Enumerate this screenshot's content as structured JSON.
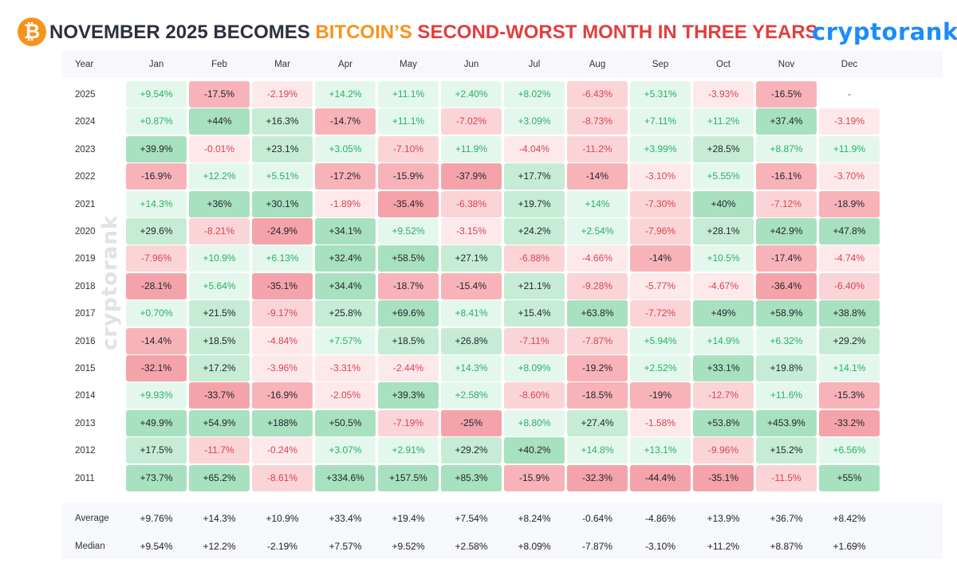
{
  "header": {
    "btc_symbol": "₿",
    "title_part1": "NOVEMBER 2025 BECOMES ",
    "title_part2": "BITCOIN’S",
    "title_part3": " SECOND-WORST MONTH IN THREE YEARS",
    "brand": "cryptorank",
    "colors": {
      "dark": "#2c3140",
      "orange": "#f7931a",
      "red": "#e23e3e",
      "brand_blue": "#1a8cff"
    }
  },
  "watermark": "cryptorank",
  "chart_data": {
    "type": "heatmap",
    "row_header_label": "Year",
    "months": [
      "Jan",
      "Feb",
      "Mar",
      "Apr",
      "May",
      "Jun",
      "Jul",
      "Aug",
      "Sep",
      "Oct",
      "Nov",
      "Dec"
    ],
    "rows": [
      {
        "year": "2025",
        "values": [
          "+9.54%",
          "-17.5%",
          "-2.19%",
          "+14.2%",
          "+11.1%",
          "+2.40%",
          "+8.02%",
          "-6.43%",
          "+5.31%",
          "-3.93%",
          "-16.5%",
          "-"
        ]
      },
      {
        "year": "2024",
        "values": [
          "+0.87%",
          "+44%",
          "+16.3%",
          "-14.7%",
          "+11.1%",
          "-7.02%",
          "+3.09%",
          "-8.73%",
          "+7.11%",
          "+11.2%",
          "+37.4%",
          "-3.19%"
        ]
      },
      {
        "year": "2023",
        "values": [
          "+39.9%",
          "-0.01%",
          "+23.1%",
          "+3.05%",
          "-7.10%",
          "+11.9%",
          "-4.04%",
          "-11.2%",
          "+3.99%",
          "+28.5%",
          "+8.87%",
          "+11.9%"
        ]
      },
      {
        "year": "2022",
        "values": [
          "-16.9%",
          "+12.2%",
          "+5.51%",
          "-17.2%",
          "-15.9%",
          "-37.9%",
          "+17.7%",
          "-14%",
          "-3.10%",
          "+5.55%",
          "-16.1%",
          "-3.70%"
        ]
      },
      {
        "year": "2021",
        "values": [
          "+14.3%",
          "+36%",
          "+30.1%",
          "-1.89%",
          "-35.4%",
          "-6.38%",
          "+19.7%",
          "+14%",
          "-7.30%",
          "+40%",
          "-7.12%",
          "-18.9%"
        ]
      },
      {
        "year": "2020",
        "values": [
          "+29.6%",
          "-8.21%",
          "-24.9%",
          "+34.1%",
          "+9.52%",
          "-3.15%",
          "+24.2%",
          "+2.54%",
          "-7.96%",
          "+28.1%",
          "+42.9%",
          "+47.8%"
        ]
      },
      {
        "year": "2019",
        "values": [
          "-7.96%",
          "+10.9%",
          "+6.13%",
          "+32.4%",
          "+58.5%",
          "+27.1%",
          "-6.88%",
          "-4.66%",
          "-14%",
          "+10.5%",
          "-17.4%",
          "-4.74%"
        ]
      },
      {
        "year": "2018",
        "values": [
          "-28.1%",
          "+5.64%",
          "-35.1%",
          "+34.4%",
          "-18.7%",
          "-15.4%",
          "+21.1%",
          "-9.28%",
          "-5.77%",
          "-4.67%",
          "-36.4%",
          "-6.40%"
        ]
      },
      {
        "year": "2017",
        "values": [
          "+0.70%",
          "+21.5%",
          "-9.17%",
          "+25.8%",
          "+69.6%",
          "+8.41%",
          "+15.4%",
          "+63.8%",
          "-7.72%",
          "+49%",
          "+58.9%",
          "+38.8%"
        ]
      },
      {
        "year": "2016",
        "values": [
          "-14.4%",
          "+18.5%",
          "-4.84%",
          "+7.57%",
          "+18.5%",
          "+26.8%",
          "-7.11%",
          "-7.87%",
          "+5.94%",
          "+14.9%",
          "+6.32%",
          "+29.2%"
        ]
      },
      {
        "year": "2015",
        "values": [
          "-32.1%",
          "+17.2%",
          "-3.96%",
          "-3.31%",
          "-2.44%",
          "+14.3%",
          "+8.09%",
          "-19.2%",
          "+2.52%",
          "+33.1%",
          "+19.8%",
          "+14.1%"
        ]
      },
      {
        "year": "2014",
        "values": [
          "+9.93%",
          "-33.7%",
          "-16.9%",
          "-2.05%",
          "+39.3%",
          "+2.58%",
          "-8.60%",
          "-18.5%",
          "-19%",
          "-12.7%",
          "+11.6%",
          "-15.3%"
        ]
      },
      {
        "year": "2013",
        "values": [
          "+49.9%",
          "+54.9%",
          "+188%",
          "+50.5%",
          "-7.19%",
          "-25%",
          "+8.80%",
          "+27.4%",
          "-1.58%",
          "+53.8%",
          "+453.9%",
          "-33.2%"
        ]
      },
      {
        "year": "2012",
        "values": [
          "+17.5%",
          "-11.7%",
          "-0.24%",
          "+3.07%",
          "+2.91%",
          "+29.2%",
          "+40.2%",
          "+14.8%",
          "+13.1%",
          "-9.96%",
          "+15.2%",
          "+6.56%"
        ]
      },
      {
        "year": "2011",
        "values": [
          "+73.7%",
          "+65.2%",
          "-8.61%",
          "+334.6%",
          "+157.5%",
          "+85.3%",
          "-15.9%",
          "-32.3%",
          "-44.4%",
          "-35.1%",
          "-11.5%",
          "+55%"
        ]
      }
    ],
    "summary": [
      {
        "label": "Average",
        "values": [
          "+9.76%",
          "+14.3%",
          "+10.9%",
          "+33.4%",
          "+19.4%",
          "+7.54%",
          "+8.24%",
          "-0.64%",
          "-4.86%",
          "+13.9%",
          "+36.7%",
          "+8.42%"
        ]
      },
      {
        "label": "Median",
        "values": [
          "+9.54%",
          "+12.2%",
          "-2.19%",
          "+7.57%",
          "+9.52%",
          "+2.58%",
          "+8.09%",
          "-7.87%",
          "-3.10%",
          "+11.2%",
          "+8.87%",
          "+1.69%"
        ]
      }
    ],
    "colors": {
      "positive_text_light": "#26b06a",
      "negative_text_light": "#d94452",
      "strong_text": "#1f2328"
    }
  }
}
